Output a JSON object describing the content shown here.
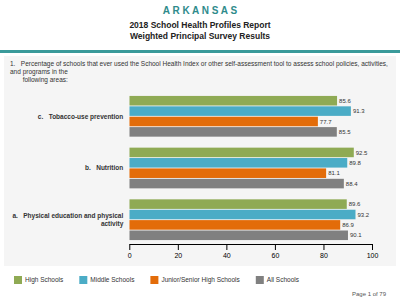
{
  "chart_data": {
    "type": "bar",
    "orientation": "horizontal",
    "title": "A R K A N S A S",
    "subtitle": [
      "2018 School Health Profiles Report",
      "Weighted Principal Survey Results"
    ],
    "annotations": [
      "1.   Percentage of schools that ever used the School Health Index or other self-assessment tool to assess school policies, activities, and programs in the\n       following areas:",
      "Page 1 of 79"
    ],
    "categories": [
      "a.   Physical education and physical\n       activity",
      "b.   Nutrition",
      "c.   Tobacco-use prevention"
    ],
    "series": [
      {
        "name": "High Schools",
        "color": "#8faa54",
        "values": [
          89.6,
          92.5,
          85.6
        ]
      },
      {
        "name": "Middle Schools",
        "color": "#4bacc6",
        "values": [
          93.2,
          89.8,
          91.3
        ]
      },
      {
        "name": "Junior/Senior High Schools",
        "color": "#e36c09",
        "values": [
          86.9,
          81.1,
          77.7
        ]
      },
      {
        "name": "All Schools",
        "color": "#808080",
        "values": [
          90.1,
          88.4,
          85.5
        ]
      }
    ],
    "xlim": [
      0,
      100
    ],
    "xticks": [
      0,
      20,
      40,
      60,
      80,
      100
    ],
    "data_labels": true,
    "grid": false,
    "legend": "bottom"
  }
}
